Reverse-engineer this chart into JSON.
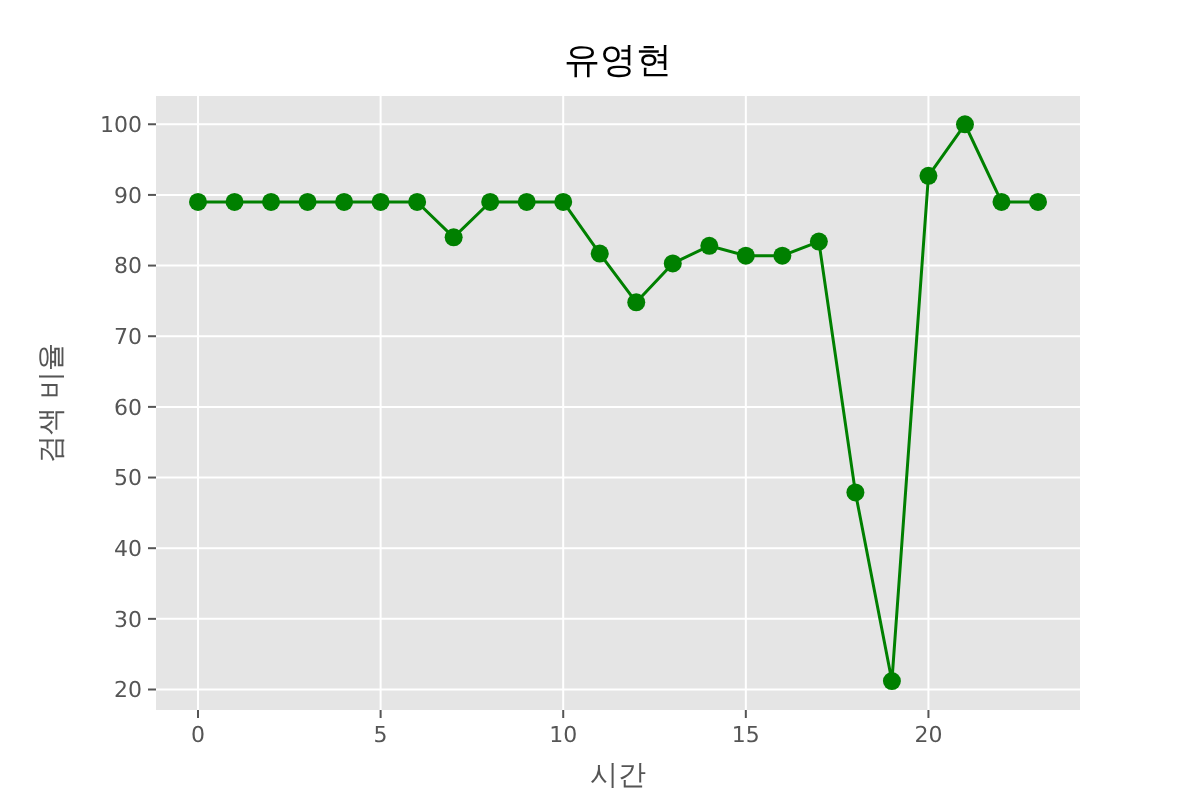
{
  "chart_data": {
    "type": "line",
    "title": "유영현",
    "xlabel": "시간",
    "ylabel": "검색 비율",
    "x": [
      0,
      1,
      2,
      3,
      4,
      5,
      6,
      7,
      8,
      9,
      10,
      11,
      12,
      13,
      14,
      15,
      16,
      17,
      18,
      19,
      20,
      21,
      22,
      23
    ],
    "series": [
      {
        "color": "#008000",
        "values": [
          89,
          89,
          89,
          89,
          89,
          89,
          89,
          84,
          89,
          89,
          89,
          81.7,
          74.8,
          80.3,
          82.8,
          81.4,
          81.4,
          83.4,
          47.9,
          21.2,
          92.7,
          100,
          89,
          89
        ]
      }
    ],
    "xlim": [
      -1.15,
      24.15
    ],
    "ylim": [
      17.1,
      104
    ],
    "xticks": [
      0,
      5,
      10,
      15,
      20
    ],
    "yticks": [
      20,
      30,
      40,
      50,
      60,
      70,
      80,
      90,
      100
    ],
    "grid": true,
    "marker": "circle",
    "line_style": "solid"
  }
}
